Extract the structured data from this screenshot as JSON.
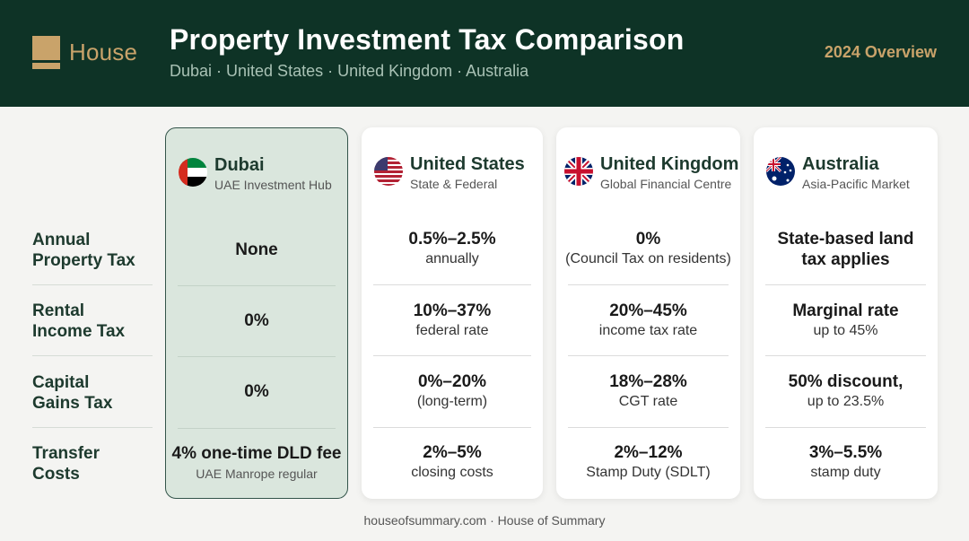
{
  "header": {
    "logo_text": "House",
    "title": "Property Investment Tax Comparison",
    "subtitle": "Dubai · United States · United Kingdom · Australia",
    "overview": "2024 Overview"
  },
  "rows": [
    {
      "label": "Annual Property Tax"
    },
    {
      "label": "Rental Income Tax"
    },
    {
      "label": "Capital Gains Tax"
    },
    {
      "label": "Transfer Costs"
    }
  ],
  "columns": [
    {
      "name": "Dubai",
      "subtitle": "UAE Investment Hub",
      "flag": "uae-flag-icon",
      "cells": [
        {
          "main": "None",
          "sub": ""
        },
        {
          "main": "0%",
          "sub": ""
        },
        {
          "main": "0%",
          "sub": ""
        },
        {
          "main": "4% one-time DLD fee",
          "sub": "UAE Manrope regular"
        }
      ]
    },
    {
      "name": "United States",
      "subtitle": "State & Federal",
      "flag": "us-flag-icon",
      "cells": [
        {
          "main": "0.5%–2.5%",
          "sub": "annually"
        },
        {
          "main": "10%–37%",
          "sub": "federal rate"
        },
        {
          "main": "0%–20%",
          "sub": "(long-term)"
        },
        {
          "main": "2%–5%",
          "sub": "closing costs"
        }
      ]
    },
    {
      "name": "United Kingdom",
      "subtitle": "Global Financial Centre",
      "flag": "uk-flag-icon",
      "cells": [
        {
          "main": "0%",
          "sub": "(Council Tax on residents)"
        },
        {
          "main": "20%–45%",
          "sub": "income tax rate"
        },
        {
          "main": "18%–28%",
          "sub": "CGT rate"
        },
        {
          "main": "2%–12%",
          "sub": "Stamp Duty (SDLT)"
        }
      ]
    },
    {
      "name": "Australia",
      "subtitle": "Asia-Pacific Market",
      "flag": "australia-flag-icon",
      "cells": [
        {
          "main": "State-based land tax applies",
          "sub": ""
        },
        {
          "main": "Marginal rate",
          "sub": "up to 45%"
        },
        {
          "main": "50% discount,",
          "sub": "up to 23.5%"
        },
        {
          "main": "3%–5.5%",
          "sub": "stamp duty"
        }
      ]
    }
  ],
  "footer": "houseofsummary.com · House of Summary",
  "colors": {
    "header_bg": "#0e3326",
    "accent_gold": "#c9a36a",
    "highlight_bg": "#dae6dd"
  }
}
